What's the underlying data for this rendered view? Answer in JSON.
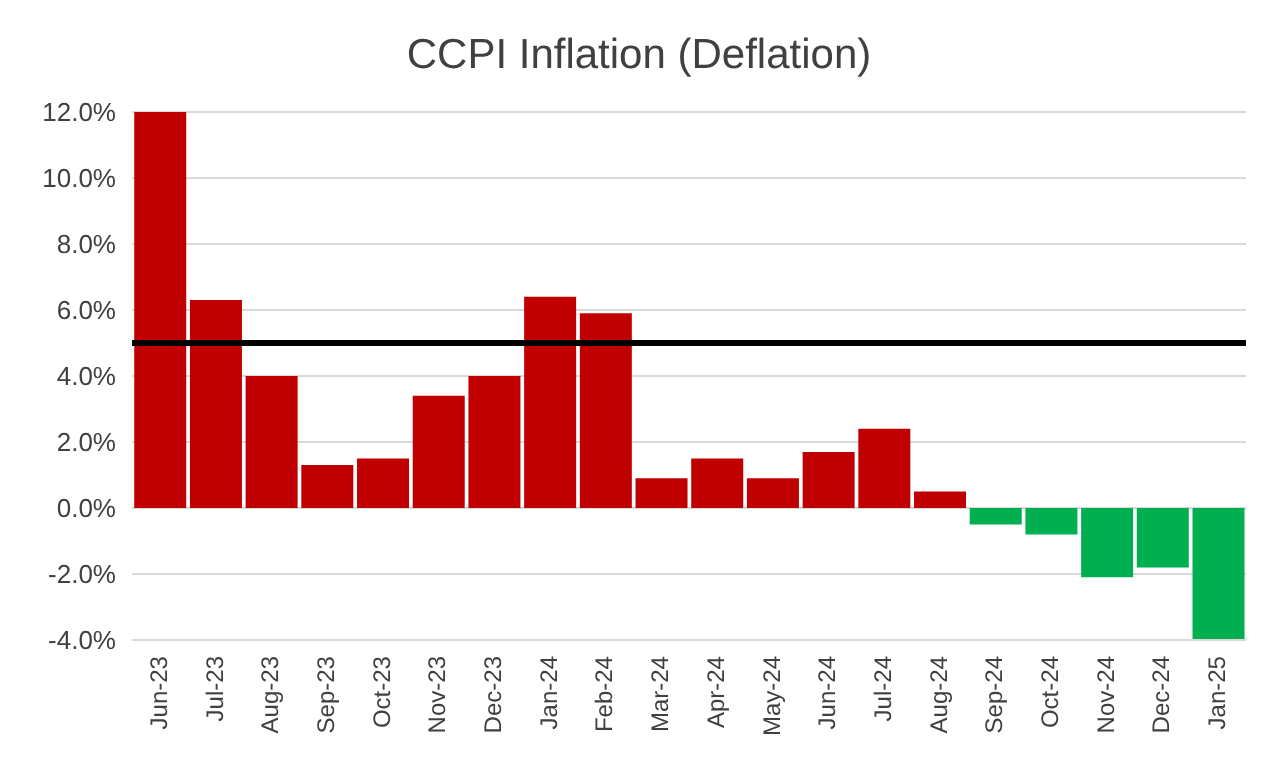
{
  "chart_data": {
    "type": "bar",
    "title": "CCPI Inflation (Deflation)",
    "categories": [
      "Jun-23",
      "Jul-23",
      "Aug-23",
      "Sep-23",
      "Oct-23",
      "Nov-23",
      "Dec-23",
      "Jan-24",
      "Feb-24",
      "Mar-24",
      "Apr-24",
      "May-24",
      "Jun-24",
      "Jul-24",
      "Aug-24",
      "Sep-24",
      "Oct-24",
      "Nov-24",
      "Dec-24",
      "Jan-25"
    ],
    "values": [
      12.0,
      6.3,
      4.0,
      1.3,
      1.5,
      3.4,
      4.0,
      6.4,
      5.9,
      0.9,
      1.5,
      0.9,
      1.7,
      2.4,
      0.5,
      -0.5,
      -0.8,
      -2.1,
      -1.8,
      -4.0
    ],
    "colors": [
      "#c00000",
      "#c00000",
      "#c00000",
      "#c00000",
      "#c00000",
      "#c00000",
      "#c00000",
      "#c00000",
      "#c00000",
      "#c00000",
      "#c00000",
      "#c00000",
      "#c00000",
      "#c00000",
      "#c00000",
      "#00b050",
      "#00b050",
      "#00b050",
      "#00b050",
      "#00b050"
    ],
    "ylim": [
      -4,
      12
    ],
    "yticks": [
      {
        "value": -4,
        "label": "-4.0%"
      },
      {
        "value": -2,
        "label": "-2.0%"
      },
      {
        "value": 0,
        "label": "0.0%"
      },
      {
        "value": 2,
        "label": "2.0%"
      },
      {
        "value": 4,
        "label": "4.0%"
      },
      {
        "value": 6,
        "label": "6.0%"
      },
      {
        "value": 8,
        "label": "8.0%"
      },
      {
        "value": 10,
        "label": "10.0%"
      },
      {
        "value": 12,
        "label": "12.0%"
      }
    ],
    "grid": "y",
    "ref_lines": [
      {
        "axis": "y",
        "value": 5,
        "color": "#000000"
      }
    ]
  }
}
